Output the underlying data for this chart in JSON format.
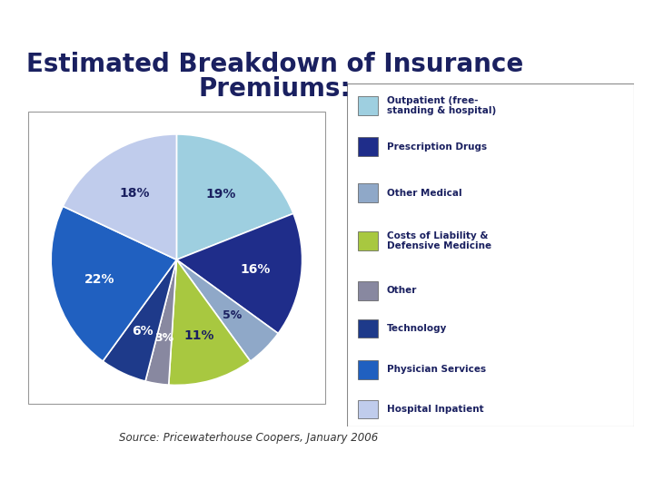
{
  "title_line1": "Estimated Breakdown of Insurance",
  "title_line2": "Premiums:",
  "source": "Source: Pricewaterhouse Coopers, January 2006",
  "slices": [
    {
      "label": "Outpatient (free-\nstanding & hospital)",
      "value": 19,
      "color": "#9ecfe0",
      "text_color": "#1a2060"
    },
    {
      "label": "Prescription Drugs",
      "value": 16,
      "color": "#1f2d8a",
      "text_color": "white"
    },
    {
      "label": "Other Medical",
      "value": 5,
      "color": "#8fa8c8",
      "text_color": "#1a2060"
    },
    {
      "label": "Costs of Liability &\nDefensive Medicine",
      "value": 11,
      "color": "#a8c840",
      "text_color": "#1a2060"
    },
    {
      "label": "Other",
      "value": 3,
      "color": "#8888a0",
      "text_color": "white"
    },
    {
      "label": "Technology",
      "value": 6,
      "color": "#1e3a8a",
      "text_color": "white"
    },
    {
      "label": "Physician Services",
      "value": 22,
      "color": "#2060c0",
      "text_color": "white"
    },
    {
      "label": "Hospital Inpatient",
      "value": 18,
      "color": "#c0ccec",
      "text_color": "#1a2060"
    }
  ],
  "title_color": "#1a2060",
  "legend_label_color": "#1a2060",
  "title_fontsize": 20,
  "legend_labels": [
    "Outpatient (free-\nstanding & hospital)",
    "Prescription Drugs",
    "Other Medical",
    "Costs of Liability &\nDefensive Medicine",
    "Other",
    "Technology",
    "Physician Services",
    "Hospital Inpatient"
  ],
  "legend_colors": [
    "#9ecfe0",
    "#1f2d8a",
    "#8fa8c8",
    "#a8c840",
    "#8888a0",
    "#1e3a8a",
    "#2060c0",
    "#c0ccec"
  ],
  "header_bg": "#1a2060",
  "header_light": "#6080b0",
  "bottom_bar_color": "#e8a020",
  "bottom_light_bar": "#8090b0",
  "bg_color": "#ffffff"
}
